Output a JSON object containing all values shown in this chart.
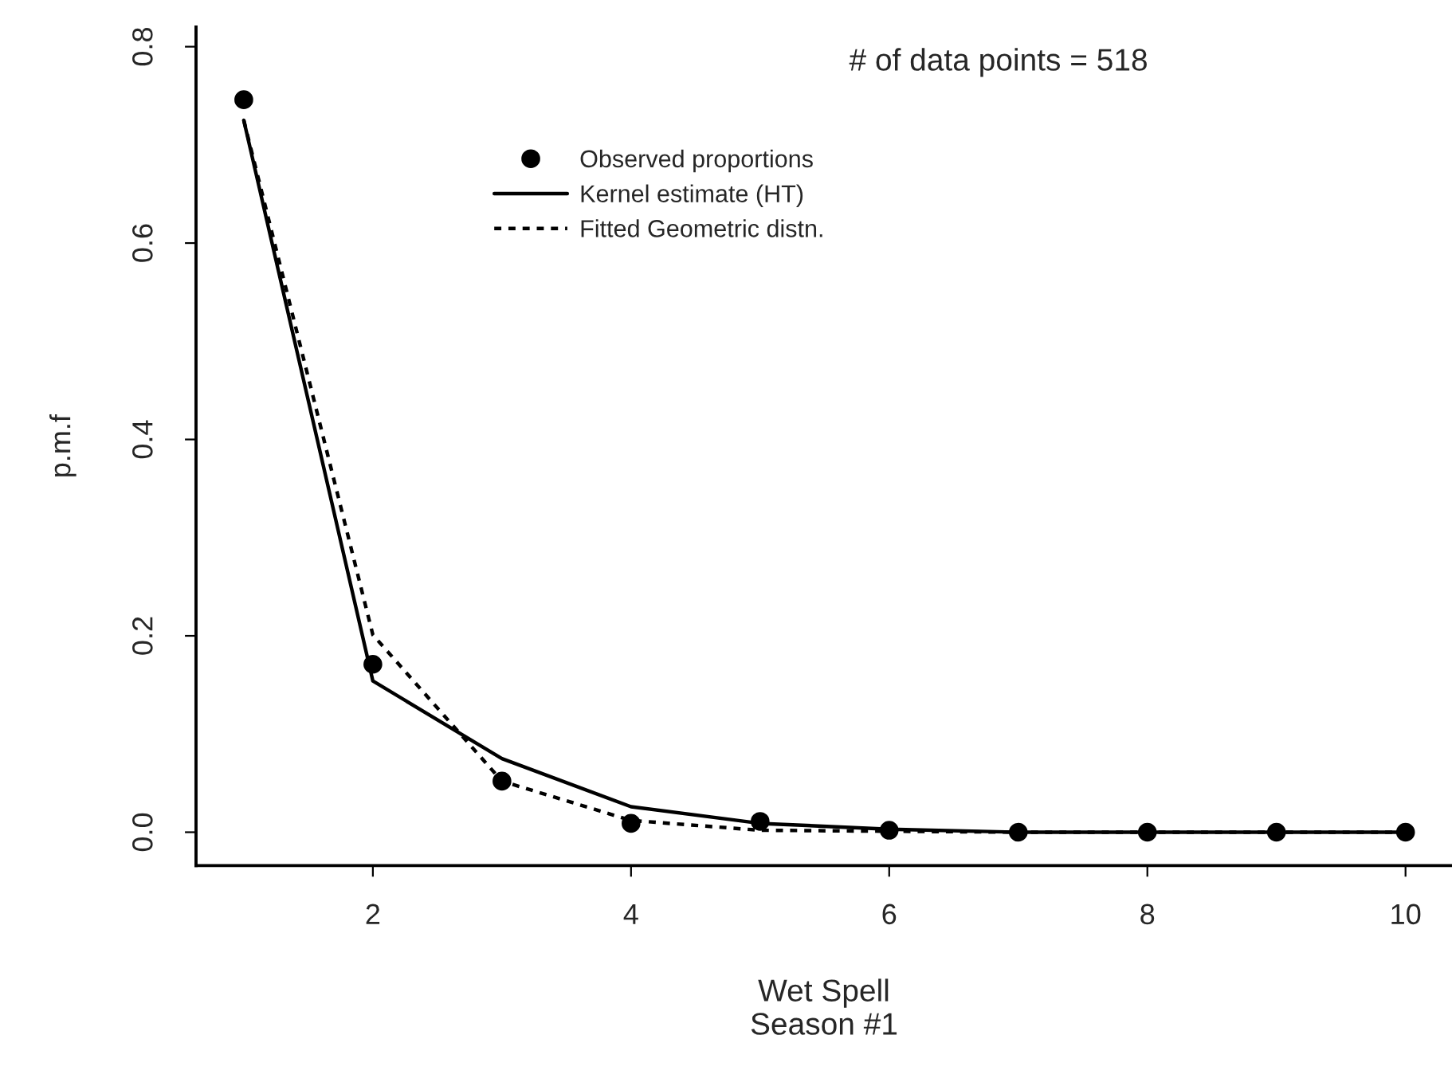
{
  "chart_data": {
    "type": "line",
    "xlabel": "Wet Spell\nSeason #1",
    "ylabel": "p.m.f",
    "annotations": [
      "# of data points = 518"
    ],
    "x": [
      1,
      2,
      3,
      4,
      5,
      6,
      7,
      8,
      9,
      10
    ],
    "series": [
      {
        "name": "Observed proportions",
        "type": "scatter",
        "color": "#000000",
        "marker": "circle",
        "values": [
          0.746,
          0.171,
          0.052,
          0.009,
          0.011,
          0.002,
          0.0,
          0.0,
          0.0,
          0.0
        ]
      },
      {
        "name": "Kernel estimate (HT)",
        "color": "#000000",
        "line_style": "solid",
        "values": [
          0.725,
          0.154,
          0.075,
          0.026,
          0.009,
          0.003,
          0.0,
          0.0,
          0.0,
          0.0
        ]
      },
      {
        "name": "Fitted Geometric distn.",
        "color": "#000000",
        "line_style": "dotted",
        "values": [
          0.725,
          0.201,
          0.052,
          0.012,
          0.002,
          0.001,
          0.0,
          0.0,
          0.0,
          0.0
        ]
      }
    ],
    "xlim": [
      0.63,
      10.36
    ],
    "ylim": [
      -0.034,
      0.82
    ],
    "xticks": [
      2,
      4,
      6,
      8,
      10
    ],
    "yticks": [
      {
        "value": 0,
        "label": "0.0"
      },
      0.2,
      0.4,
      0.6,
      0.8
    ],
    "grid": false,
    "legend": "top"
  }
}
